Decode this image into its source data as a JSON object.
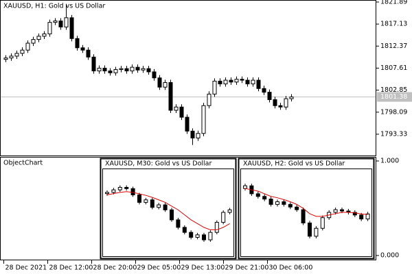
{
  "chart_data": [
    {
      "type": "candlestick",
      "title": "XAUUSD, H1:  Gold vs US Dollar",
      "ylim": [
        1788.58,
        1822.33
      ],
      "yticks": [
        1821.89,
        1817.13,
        1812.37,
        1807.61,
        1802.85,
        1798.09,
        1793.33
      ],
      "bid": 1801.38,
      "xticks": [
        {
          "value": 0,
          "label": "28 Dec 2021"
        },
        {
          "value": 8,
          "label": "28 Dec 12:00"
        },
        {
          "value": 16,
          "label": "28 Dec 20:00"
        },
        {
          "value": 24,
          "label": "29 Dec 05:00"
        },
        {
          "value": 32,
          "label": "29 Dec 13:00"
        },
        {
          "value": 40,
          "label": "29 Dec 21:00"
        },
        {
          "value": 48,
          "label": "30 Dec 06:00"
        }
      ],
      "open": [
        1809.5,
        1809.8,
        1810.2,
        1810.8,
        1811.5,
        1813.0,
        1813.8,
        1814.5,
        1815.0,
        1817.5,
        1817.8,
        1816.5,
        1818.5,
        1814.0,
        1812.0,
        1811.5,
        1810.0,
        1807.0,
        1807.6,
        1807.0,
        1806.6,
        1807.3,
        1807.5,
        1807.0,
        1807.8,
        1807.2,
        1807.5,
        1806.8,
        1805.5,
        1803.5,
        1804.5,
        1798.5,
        1799.2,
        1797.0,
        1794.0,
        1792.5,
        1793.5,
        1799.5,
        1802.0,
        1804.8,
        1804.2,
        1805.0,
        1804.6,
        1805.2,
        1805.0,
        1804.2,
        1805.0,
        1803.2,
        1802.4,
        1800.8,
        1799.5,
        1799.2,
        1801.0
      ],
      "high": [
        1810.4,
        1810.8,
        1811.4,
        1812.1,
        1813.6,
        1814.4,
        1815.1,
        1815.6,
        1818.1,
        1818.4,
        1818.4,
        1821.5,
        1819.1,
        1814.6,
        1812.6,
        1812.1,
        1810.6,
        1808.2,
        1808.2,
        1807.6,
        1807.9,
        1808.1,
        1808.1,
        1808.4,
        1808.4,
        1808.1,
        1808.1,
        1807.4,
        1806.1,
        1805.1,
        1805.1,
        1799.8,
        1799.8,
        1797.6,
        1794.6,
        1794.1,
        1800.1,
        1802.6,
        1805.4,
        1805.4,
        1805.6,
        1805.6,
        1805.8,
        1805.8,
        1805.6,
        1805.6,
        1805.6,
        1803.8,
        1803.0,
        1801.4,
        1800.1,
        1801.6,
        1802.0
      ],
      "low": [
        1808.9,
        1809.2,
        1809.6,
        1810.2,
        1810.9,
        1812.4,
        1813.2,
        1813.9,
        1814.4,
        1816.9,
        1815.9,
        1815.9,
        1813.4,
        1811.4,
        1810.9,
        1809.4,
        1806.4,
        1806.4,
        1806.4,
        1806.0,
        1806.0,
        1806.7,
        1806.4,
        1806.4,
        1806.6,
        1806.6,
        1806.2,
        1804.9,
        1802.9,
        1802.9,
        1797.9,
        1797.9,
        1796.4,
        1793.4,
        1791.0,
        1791.9,
        1792.9,
        1798.9,
        1801.4,
        1803.6,
        1803.6,
        1804.0,
        1804.0,
        1804.4,
        1803.6,
        1803.6,
        1802.6,
        1801.8,
        1800.2,
        1798.9,
        1798.6,
        1798.6,
        1800.4
      ],
      "close": [
        1809.8,
        1810.2,
        1810.8,
        1811.5,
        1813.0,
        1813.8,
        1814.5,
        1815.0,
        1817.5,
        1817.8,
        1816.5,
        1818.5,
        1814.0,
        1812.0,
        1811.5,
        1810.0,
        1807.0,
        1807.6,
        1807.0,
        1806.6,
        1807.3,
        1807.5,
        1807.0,
        1807.8,
        1807.2,
        1807.5,
        1806.8,
        1805.5,
        1803.5,
        1804.5,
        1798.5,
        1799.2,
        1797.0,
        1794.0,
        1792.5,
        1793.5,
        1799.5,
        1802.0,
        1804.8,
        1804.2,
        1805.0,
        1804.6,
        1805.2,
        1805.0,
        1804.2,
        1805.0,
        1803.2,
        1802.4,
        1800.8,
        1799.5,
        1799.2,
        1801.0,
        1801.38
      ]
    },
    {
      "type": "candlestick",
      "title": "XAUUSD, M30:  Gold vs US Dollar",
      "ylim": [
        1784,
        1818
      ],
      "ma_color": "#e00000",
      "open": [
        1808.5,
        1809,
        1810,
        1811,
        1810.5,
        1808,
        1805,
        1806,
        1803,
        1804,
        1802,
        1798,
        1795,
        1793,
        1791,
        1792,
        1790,
        1793,
        1797,
        1801
      ],
      "high": [
        1809.8,
        1810.8,
        1811.8,
        1811.8,
        1811.3,
        1808.8,
        1806.8,
        1806.8,
        1804.8,
        1804.8,
        1802.8,
        1798.8,
        1795.8,
        1793.8,
        1792.8,
        1792.8,
        1793.8,
        1797.8,
        1801.8,
        1802.8
      ],
      "low": [
        1807.7,
        1808.2,
        1809.2,
        1809.7,
        1807.2,
        1804.2,
        1804.2,
        1802.2,
        1802.2,
        1801.2,
        1797.2,
        1794.2,
        1792.2,
        1790.2,
        1790.2,
        1789.2,
        1789.2,
        1792.2,
        1796.2,
        1800.2
      ],
      "close": [
        1809,
        1810,
        1811,
        1810.5,
        1808,
        1805,
        1806,
        1803,
        1804,
        1802,
        1798,
        1795,
        1793,
        1791,
        1792,
        1790,
        1793,
        1797,
        1801,
        1802
      ],
      "ma": [
        1808,
        1808.5,
        1809,
        1809.3,
        1809,
        1808.4,
        1807.8,
        1807,
        1806,
        1805,
        1803.5,
        1802,
        1800,
        1798,
        1796.5,
        1795,
        1794,
        1794,
        1795,
        1796.5
      ]
    },
    {
      "type": "candlestick",
      "title": "XAUUSD, H2:  Gold vs US Dollar",
      "ylim": [
        1786,
        1818
      ],
      "ma_color": "#e00000",
      "open": [
        1811,
        1812,
        1809,
        1808,
        1807,
        1805,
        1806,
        1805,
        1804,
        1803,
        1798,
        1793,
        1796,
        1800,
        1802,
        1803,
        1802.5,
        1802,
        1801,
        1799.5
      ],
      "high": [
        1812.8,
        1812.8,
        1809.8,
        1808.8,
        1807.8,
        1806.8,
        1806.8,
        1805.8,
        1804.8,
        1803.8,
        1798.8,
        1796.8,
        1800.8,
        1802.8,
        1803.8,
        1803.8,
        1803.3,
        1802.8,
        1801.8,
        1802.2
      ],
      "low": [
        1810.2,
        1808.2,
        1807.2,
        1806.2,
        1804.2,
        1804.2,
        1804.2,
        1803.2,
        1802.2,
        1797.2,
        1792.2,
        1792.2,
        1795.2,
        1799.2,
        1801.2,
        1801.7,
        1801.2,
        1800.2,
        1798.7,
        1798.7
      ],
      "close": [
        1812,
        1809,
        1808,
        1807,
        1805,
        1806,
        1805,
        1804,
        1803,
        1798,
        1793,
        1796,
        1800,
        1802,
        1803,
        1802.5,
        1802,
        1801,
        1799.5,
        1801.4
      ],
      "ma": [
        1811,
        1810.5,
        1810,
        1809,
        1808,
        1807.5,
        1806.8,
        1806,
        1805,
        1803.5,
        1801.5,
        1800.5,
        1800.5,
        1801,
        1801.5,
        1802,
        1802,
        1801.8,
        1801.4,
        1801.2
      ]
    }
  ],
  "indicator_window": {
    "label": "ObjectChart",
    "ylim": [
      0,
      1
    ],
    "yticks": [
      {
        "value": 1,
        "label": "1.000"
      },
      {
        "value": 0,
        "label": "0.000"
      }
    ]
  }
}
